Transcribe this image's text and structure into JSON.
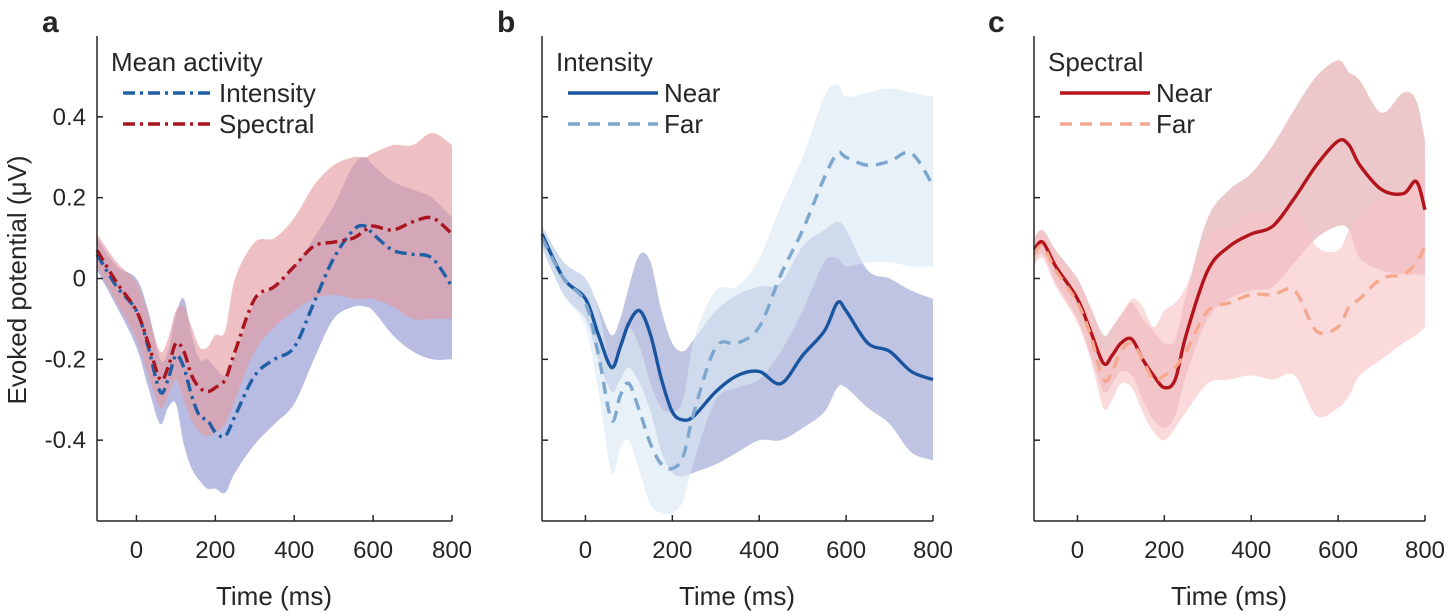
{
  "figure": {
    "ylabel": "Evoked potential (μV)",
    "yticks": [
      -0.4,
      -0.2,
      0,
      0.2,
      0.4
    ],
    "ytick_labels": [
      "-0.4",
      "-0.2",
      "0",
      "0.2",
      "0.4"
    ],
    "xticks": [
      0,
      200,
      400,
      600,
      800
    ],
    "xtick_labels": [
      "0",
      "200",
      "400",
      "600",
      "800"
    ]
  },
  "chart_data": [
    {
      "type": "line",
      "panel_label": "a",
      "legend_title": "Mean activity",
      "xlabel": "Time (ms)",
      "ylabel": "Evoked potential (μV)",
      "xlim": [
        -100,
        800
      ],
      "ylim": [
        -0.6,
        0.6
      ],
      "x": [
        -100,
        -50,
        0,
        30,
        60,
        80,
        100,
        120,
        140,
        160,
        180,
        200,
        225,
        250,
        300,
        350,
        400,
        450,
        500,
        550,
        580,
        600,
        650,
        700,
        750,
        800
      ],
      "series": [
        {
          "name": "Intensity",
          "color": "#1f5fa6",
          "style": "dashdot",
          "band_color": "#8c93d0",
          "values": [
            0.06,
            -0.02,
            -0.08,
            -0.17,
            -0.28,
            -0.25,
            -0.19,
            -0.22,
            -0.29,
            -0.34,
            -0.35,
            -0.38,
            -0.39,
            -0.34,
            -0.24,
            -0.2,
            -0.17,
            -0.06,
            0.05,
            0.12,
            0.13,
            0.11,
            0.07,
            0.06,
            0.05,
            -0.02
          ],
          "lower": [
            0.02,
            -0.07,
            -0.17,
            -0.27,
            -0.36,
            -0.32,
            -0.31,
            -0.41,
            -0.47,
            -0.5,
            -0.52,
            -0.52,
            -0.53,
            -0.48,
            -0.41,
            -0.36,
            -0.31,
            -0.2,
            -0.1,
            -0.07,
            -0.07,
            -0.08,
            -0.14,
            -0.18,
            -0.2,
            -0.2
          ],
          "upper": [
            0.1,
            0.03,
            0.0,
            -0.08,
            -0.2,
            -0.18,
            -0.09,
            -0.05,
            -0.14,
            -0.2,
            -0.2,
            -0.22,
            -0.24,
            -0.19,
            -0.06,
            -0.02,
            0.03,
            0.1,
            0.18,
            0.28,
            0.3,
            0.28,
            0.24,
            0.22,
            0.2,
            0.15
          ]
        },
        {
          "name": "Spectral",
          "color": "#a8151e",
          "style": "dashdot",
          "band_color": "#e3999e",
          "values": [
            0.07,
            -0.01,
            -0.08,
            -0.16,
            -0.25,
            -0.22,
            -0.16,
            -0.18,
            -0.24,
            -0.27,
            -0.28,
            -0.27,
            -0.25,
            -0.18,
            -0.05,
            -0.02,
            0.03,
            0.08,
            0.09,
            0.1,
            0.12,
            0.13,
            0.12,
            0.14,
            0.15,
            0.11
          ],
          "lower": [
            0.03,
            -0.06,
            -0.15,
            -0.24,
            -0.32,
            -0.29,
            -0.25,
            -0.3,
            -0.35,
            -0.38,
            -0.39,
            -0.38,
            -0.36,
            -0.3,
            -0.18,
            -0.12,
            -0.08,
            -0.05,
            -0.04,
            -0.05,
            -0.05,
            -0.05,
            -0.07,
            -0.1,
            -0.1,
            -0.1
          ],
          "upper": [
            0.11,
            0.04,
            -0.01,
            -0.09,
            -0.18,
            -0.15,
            -0.08,
            -0.07,
            -0.12,
            -0.17,
            -0.17,
            -0.14,
            -0.13,
            0.0,
            0.09,
            0.1,
            0.15,
            0.23,
            0.28,
            0.3,
            0.3,
            0.31,
            0.33,
            0.33,
            0.36,
            0.33
          ]
        }
      ]
    },
    {
      "type": "line",
      "panel_label": "b",
      "legend_title": "Intensity",
      "xlabel": "Time (ms)",
      "ylabel": "Evoked potential (μV)",
      "xlim": [
        -100,
        800
      ],
      "ylim": [
        -0.6,
        0.6
      ],
      "x": [
        -100,
        -50,
        0,
        30,
        60,
        80,
        100,
        125,
        150,
        175,
        200,
        225,
        250,
        300,
        350,
        400,
        450,
        500,
        550,
        580,
        600,
        650,
        700,
        750,
        800
      ],
      "series": [
        {
          "name": "Near",
          "color": "#1a56a0",
          "style": "solid",
          "band_color": "#9a9fd2",
          "values": [
            0.11,
            0.0,
            -0.05,
            -0.14,
            -0.22,
            -0.17,
            -0.11,
            -0.08,
            -0.14,
            -0.25,
            -0.33,
            -0.35,
            -0.34,
            -0.28,
            -0.24,
            -0.23,
            -0.26,
            -0.19,
            -0.13,
            -0.06,
            -0.08,
            -0.16,
            -0.18,
            -0.23,
            -0.25
          ],
          "lower": [
            0.08,
            -0.04,
            -0.1,
            -0.2,
            -0.28,
            -0.25,
            -0.22,
            -0.26,
            -0.33,
            -0.43,
            -0.48,
            -0.49,
            -0.48,
            -0.46,
            -0.43,
            -0.4,
            -0.4,
            -0.37,
            -0.33,
            -0.27,
            -0.27,
            -0.32,
            -0.36,
            -0.43,
            -0.45
          ],
          "upper": [
            0.13,
            0.04,
            0.0,
            -0.07,
            -0.14,
            -0.1,
            -0.02,
            0.06,
            0.04,
            -0.08,
            -0.16,
            -0.18,
            -0.15,
            -0.08,
            -0.04,
            -0.02,
            -0.01,
            0.08,
            0.12,
            0.14,
            0.12,
            0.02,
            0.0,
            -0.03,
            -0.05
          ]
        },
        {
          "name": "Far",
          "color": "#7ea7cf",
          "style": "dashed",
          "band_color": "#dae6f3",
          "values": [
            0.1,
            0.0,
            -0.06,
            -0.19,
            -0.35,
            -0.29,
            -0.26,
            -0.33,
            -0.41,
            -0.46,
            -0.47,
            -0.44,
            -0.33,
            -0.17,
            -0.16,
            -0.12,
            0.01,
            0.12,
            0.25,
            0.31,
            0.3,
            0.28,
            0.29,
            0.31,
            0.23
          ],
          "lower": [
            0.07,
            -0.04,
            -0.12,
            -0.28,
            -0.48,
            -0.42,
            -0.4,
            -0.48,
            -0.56,
            -0.58,
            -0.58,
            -0.55,
            -0.45,
            -0.3,
            -0.27,
            -0.25,
            -0.18,
            -0.08,
            0.04,
            0.05,
            0.03,
            0.04,
            0.04,
            0.03,
            0.03
          ],
          "upper": [
            0.13,
            0.04,
            0.0,
            -0.08,
            -0.22,
            -0.16,
            -0.12,
            -0.17,
            -0.26,
            -0.32,
            -0.33,
            -0.3,
            -0.15,
            -0.03,
            -0.02,
            0.05,
            0.18,
            0.3,
            0.45,
            0.48,
            0.45,
            0.46,
            0.47,
            0.46,
            0.45
          ]
        }
      ]
    },
    {
      "type": "line",
      "panel_label": "c",
      "legend_title": "Spectral",
      "xlabel": "Time (ms)",
      "ylabel": "Evoked potential (μV)",
      "xlim": [
        -100,
        800
      ],
      "ylim": [
        -0.6,
        0.6
      ],
      "x": [
        -100,
        -80,
        -50,
        0,
        30,
        60,
        80,
        100,
        125,
        150,
        175,
        200,
        225,
        250,
        300,
        350,
        400,
        450,
        500,
        550,
        600,
        625,
        650,
        700,
        750,
        780,
        800
      ],
      "series": [
        {
          "name": "Near",
          "color": "#b4141c",
          "style": "solid",
          "band_color": "#e0a6aa",
          "values": [
            0.07,
            0.09,
            0.03,
            -0.05,
            -0.13,
            -0.21,
            -0.19,
            -0.16,
            -0.15,
            -0.2,
            -0.24,
            -0.27,
            -0.25,
            -0.14,
            0.02,
            0.08,
            0.11,
            0.13,
            0.2,
            0.28,
            0.34,
            0.33,
            0.28,
            0.22,
            0.21,
            0.24,
            0.17
          ],
          "lower": [
            0.04,
            0.06,
            -0.01,
            -0.1,
            -0.19,
            -0.28,
            -0.26,
            -0.23,
            -0.24,
            -0.3,
            -0.35,
            -0.37,
            -0.34,
            -0.24,
            -0.1,
            -0.05,
            -0.03,
            -0.02,
            0.04,
            0.1,
            0.13,
            0.12,
            0.05,
            0.02,
            0.01,
            0.01,
            0.01
          ],
          "upper": [
            0.1,
            0.12,
            0.07,
            0.0,
            -0.07,
            -0.14,
            -0.12,
            -0.09,
            -0.06,
            -0.1,
            -0.13,
            -0.16,
            -0.15,
            -0.04,
            0.15,
            0.22,
            0.26,
            0.33,
            0.42,
            0.5,
            0.54,
            0.51,
            0.49,
            0.41,
            0.46,
            0.44,
            0.34
          ]
        },
        {
          "name": "Far",
          "color": "#f4a98f",
          "style": "dashed",
          "band_color": "#f8c3c6",
          "values": [
            0.06,
            0.08,
            0.02,
            -0.06,
            -0.14,
            -0.25,
            -0.23,
            -0.18,
            -0.16,
            -0.2,
            -0.25,
            -0.24,
            -0.22,
            -0.18,
            -0.08,
            -0.06,
            -0.04,
            -0.04,
            -0.03,
            -0.13,
            -0.12,
            -0.07,
            -0.05,
            0.0,
            0.01,
            0.04,
            0.08
          ],
          "lower": [
            0.03,
            0.05,
            -0.02,
            -0.11,
            -0.2,
            -0.32,
            -0.3,
            -0.26,
            -0.27,
            -0.33,
            -0.38,
            -0.4,
            -0.37,
            -0.33,
            -0.26,
            -0.25,
            -0.24,
            -0.25,
            -0.24,
            -0.34,
            -0.32,
            -0.29,
            -0.24,
            -0.2,
            -0.16,
            -0.14,
            -0.12
          ],
          "upper": [
            0.09,
            0.11,
            0.06,
            -0.01,
            -0.08,
            -0.18,
            -0.16,
            -0.1,
            -0.05,
            -0.07,
            -0.12,
            -0.08,
            -0.06,
            -0.02,
            0.1,
            0.13,
            0.16,
            0.17,
            0.18,
            0.08,
            0.07,
            0.12,
            0.15,
            0.2,
            0.22,
            0.25,
            0.28
          ]
        }
      ]
    }
  ]
}
